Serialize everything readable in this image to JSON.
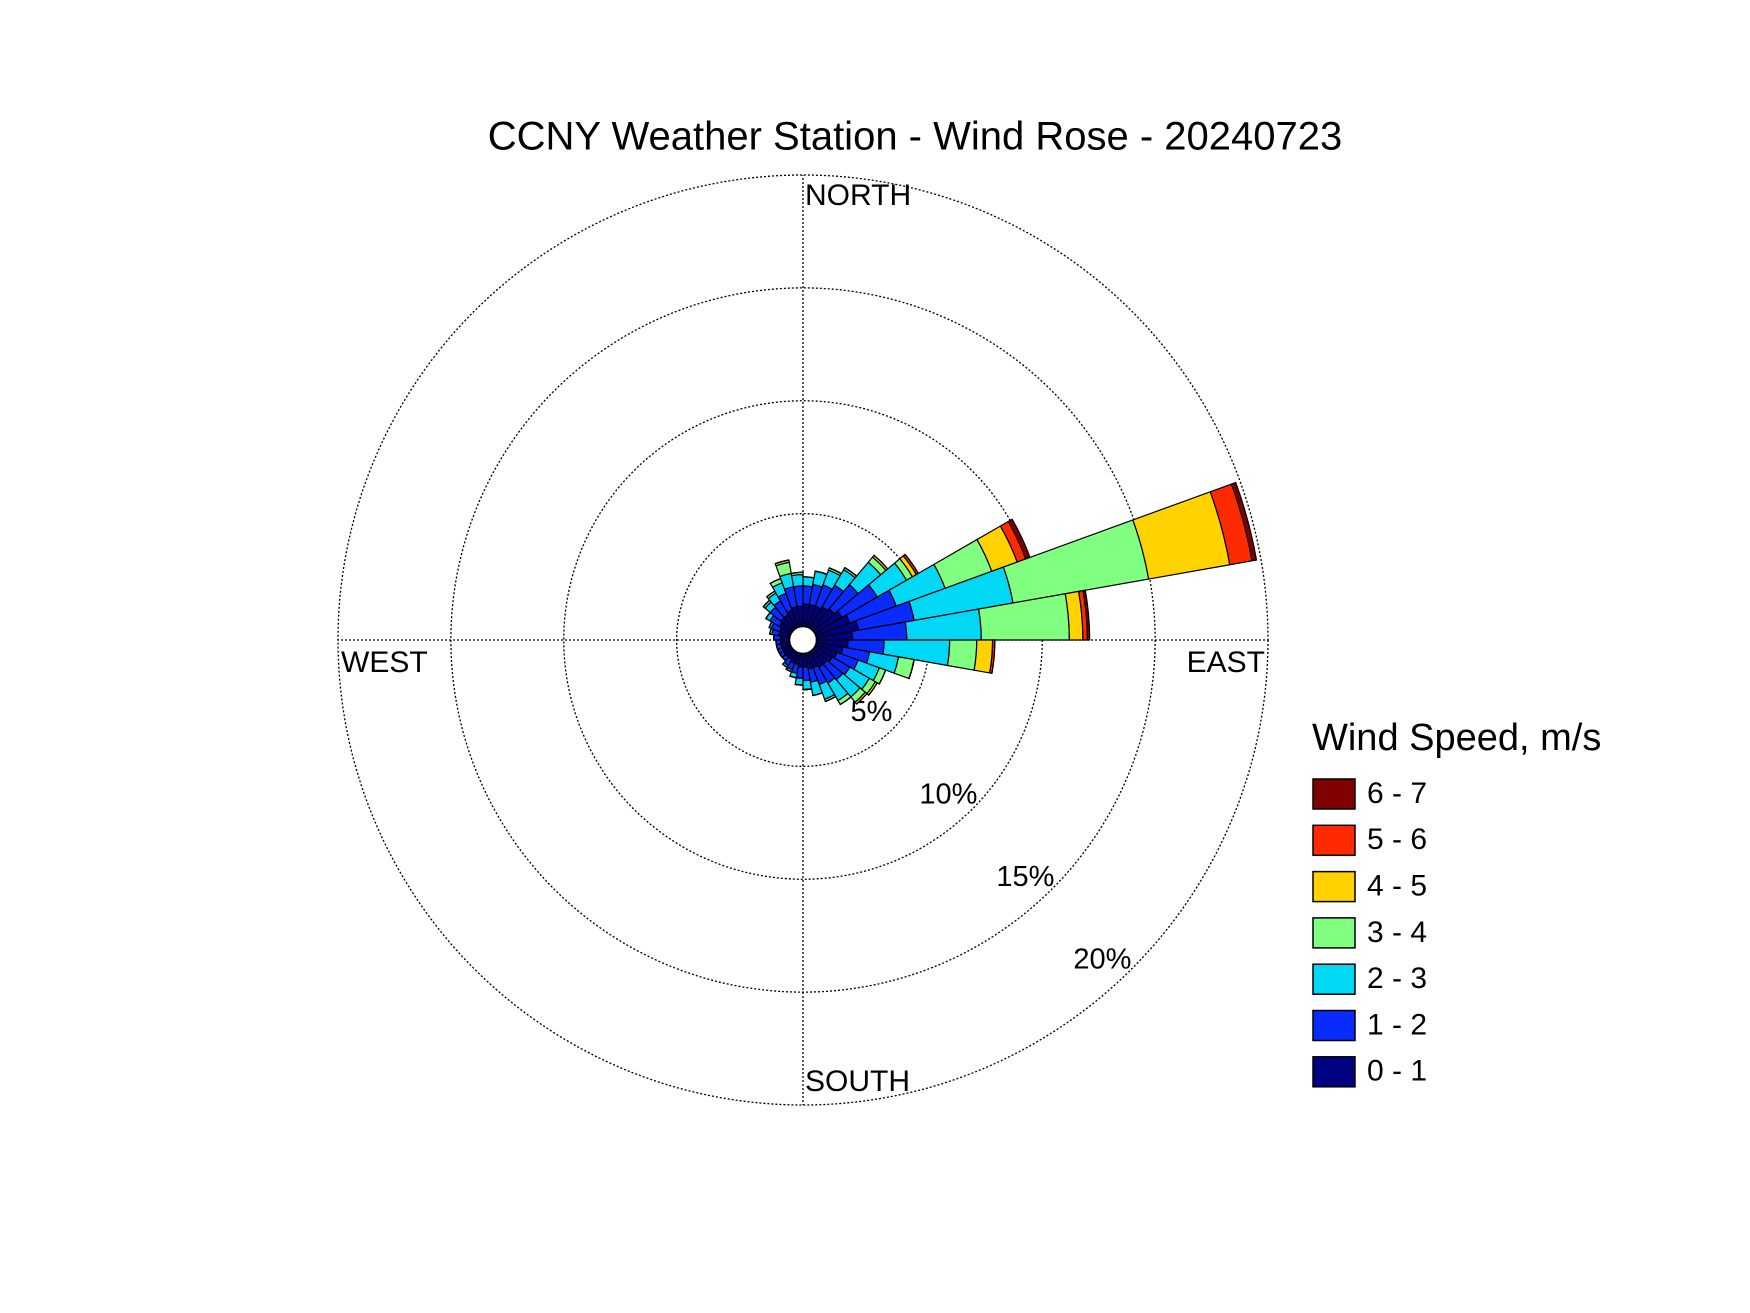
{
  "chart_data": {
    "type": "rose",
    "title": "CCNY Weather Station - Wind Rose - 20240723",
    "legend_title": "Wind Speed, m/s",
    "legend": "right",
    "grid": true,
    "x": [
      5,
      15,
      25,
      35,
      45,
      55,
      65,
      75,
      85,
      95,
      105,
      115,
      125,
      135,
      145,
      155,
      165,
      175,
      185,
      195,
      205,
      215,
      225,
      235,
      245,
      255,
      265,
      275,
      285,
      295,
      305,
      315,
      325,
      335,
      345,
      355
    ],
    "xlim": [
      0,
      360
    ],
    "xticks": [
      {
        "value": 0,
        "label": "NORTH"
      },
      {
        "value": 90,
        "label": "EAST"
      },
      {
        "value": 180,
        "label": "SOUTH"
      },
      {
        "value": 270,
        "label": "WEST"
      }
    ],
    "ylim": [
      0,
      20
    ],
    "yticks": [
      {
        "value": 5,
        "label": "5%"
      },
      {
        "value": 10,
        "label": "10%"
      },
      {
        "value": 15,
        "label": "15%"
      },
      {
        "value": 20,
        "label": "20%"
      }
    ],
    "series": [
      {
        "name": "0 - 1",
        "color": "#000080",
        "values": [
          1.0,
          1.0,
          1.0,
          1.1,
          1.2,
          1.4,
          1.6,
          1.9,
          1.6,
          1.4,
          1.2,
          1.0,
          0.9,
          0.8,
          0.8,
          0.7,
          0.7,
          0.6,
          0.6,
          0.5,
          0.5,
          0.4,
          0.4,
          0.4,
          0.4,
          0.4,
          0.4,
          0.4,
          0.5,
          0.5,
          0.6,
          0.7,
          0.7,
          0.8,
          0.9,
          0.9
        ]
      },
      {
        "name": "1 - 2",
        "color": "#0a2bff",
        "values": [
          0.8,
          0.9,
          1.0,
          1.1,
          1.4,
          1.8,
          2.2,
          2.5,
          2.4,
          1.6,
          1.2,
          1.0,
          0.9,
          0.9,
          0.8,
          0.8,
          0.6,
          0.6,
          0.5,
          0.4,
          0.3,
          0.3,
          0.2,
          0.2,
          0.2,
          0.2,
          0.2,
          0.3,
          0.3,
          0.4,
          0.5,
          0.6,
          0.7,
          0.8,
          0.9,
          0.9
        ]
      },
      {
        "name": "2 - 3",
        "color": "#00d8f5",
        "values": [
          0.4,
          0.6,
          0.7,
          0.8,
          1.3,
          1.5,
          2.3,
          4.45,
          3.3,
          2.9,
          1.3,
          1.0,
          1.0,
          1.0,
          0.9,
          0.7,
          0.6,
          0.4,
          0.3,
          0.2,
          0.1,
          0.1,
          0,
          0,
          0,
          0,
          0,
          0,
          0.1,
          0.1,
          0.2,
          0.3,
          0.4,
          0.5,
          0.6,
          0.5
        ]
      },
      {
        "name": "3 - 4",
        "color": "#80ff80",
        "values": [
          0,
          0,
          0.1,
          0.1,
          0.3,
          0.3,
          2.2,
          6.1,
          3.9,
          1.2,
          0.7,
          0.3,
          0.3,
          0.3,
          0.2,
          0.1,
          0,
          0,
          0,
          0,
          0,
          0,
          0,
          0,
          0,
          0,
          0,
          0,
          0,
          0,
          0,
          0.1,
          0.1,
          0.2,
          0.5,
          0.1
        ]
      },
      {
        "name": "4 - 5",
        "color": "#ffd200",
        "values": [
          0,
          0,
          0,
          0,
          0.1,
          0.2,
          1.2,
          3.65,
          0.6,
          0.7,
          0,
          0,
          0.1,
          0.1,
          0,
          0,
          0,
          0,
          0,
          0,
          0,
          0,
          0,
          0,
          0,
          0,
          0,
          0,
          0,
          0,
          0,
          0,
          0,
          0,
          0.1,
          0
        ]
      },
      {
        "name": "5 - 6",
        "color": "#ff2a00",
        "values": [
          0,
          0,
          0,
          0,
          0,
          0.1,
          0.4,
          1.0,
          0.2,
          0.1,
          0,
          0,
          0,
          0,
          0,
          0,
          0,
          0,
          0,
          0,
          0,
          0,
          0,
          0,
          0,
          0,
          0,
          0,
          0,
          0,
          0,
          0,
          0,
          0,
          0,
          0
        ]
      },
      {
        "name": "6 - 7",
        "color": "#800000",
        "values": [
          0,
          0,
          0,
          0,
          0,
          0,
          0.2,
          0.2,
          0.1,
          0,
          0,
          0,
          0,
          0,
          0,
          0,
          0,
          0,
          0,
          0,
          0,
          0,
          0,
          0,
          0,
          0,
          0,
          0,
          0,
          0,
          0,
          0,
          0,
          0,
          0,
          0
        ]
      }
    ]
  }
}
